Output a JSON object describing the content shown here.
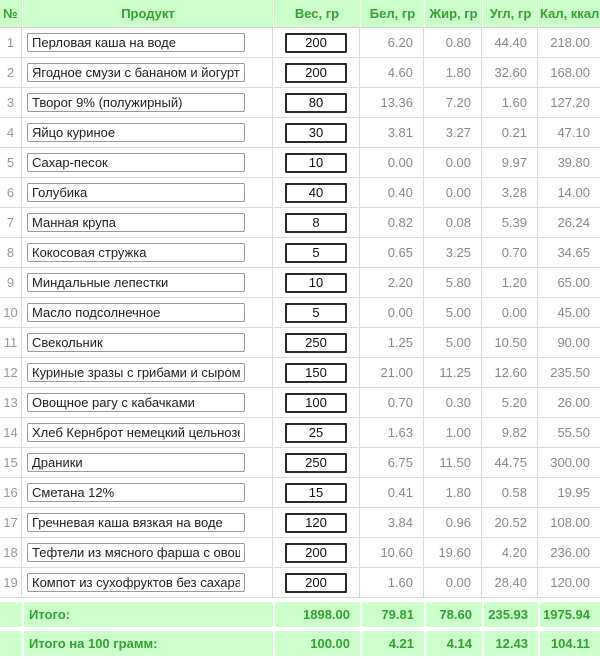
{
  "table": {
    "columns": [
      {
        "key": "num",
        "label": "№"
      },
      {
        "key": "product",
        "label": "Продукт"
      },
      {
        "key": "weight",
        "label": "Вес, гр"
      },
      {
        "key": "protein",
        "label": "Бел, гр"
      },
      {
        "key": "fat",
        "label": "Жир, гр"
      },
      {
        "key": "carbs",
        "label": "Угл, гр"
      },
      {
        "key": "calories",
        "label": "Кал, ккал"
      }
    ],
    "rows": [
      {
        "num": "1",
        "product": "Перловая каша на воде",
        "weight": "200",
        "protein": "6.20",
        "fat": "0.80",
        "carbs": "44.40",
        "calories": "218.00"
      },
      {
        "num": "2",
        "product": "Ягодное смузи с бананом и йогуртом",
        "weight": "200",
        "protein": "4.60",
        "fat": "1.80",
        "carbs": "32.60",
        "calories": "168.00"
      },
      {
        "num": "3",
        "product": "Творог 9% (полужирный)",
        "weight": "80",
        "protein": "13.36",
        "fat": "7.20",
        "carbs": "1.60",
        "calories": "127.20"
      },
      {
        "num": "4",
        "product": "Яйцо куриное",
        "weight": "30",
        "protein": "3.81",
        "fat": "3.27",
        "carbs": "0.21",
        "calories": "47.10"
      },
      {
        "num": "5",
        "product": "Сахар-песок",
        "weight": "10",
        "protein": "0.00",
        "fat": "0.00",
        "carbs": "9.97",
        "calories": "39.80"
      },
      {
        "num": "6",
        "product": "Голубика",
        "weight": "40",
        "protein": "0.40",
        "fat": "0.00",
        "carbs": "3.28",
        "calories": "14.00"
      },
      {
        "num": "7",
        "product": "Манная крупа",
        "weight": "8",
        "protein": "0.82",
        "fat": "0.08",
        "carbs": "5.39",
        "calories": "26.24"
      },
      {
        "num": "8",
        "product": "Кокосовая стружка",
        "weight": "5",
        "protein": "0.65",
        "fat": "3.25",
        "carbs": "0.70",
        "calories": "34.65"
      },
      {
        "num": "9",
        "product": "Миндальные лепестки",
        "weight": "10",
        "protein": "2.20",
        "fat": "5.80",
        "carbs": "1.20",
        "calories": "65.00"
      },
      {
        "num": "10",
        "product": "Масло подсолнечное",
        "weight": "5",
        "protein": "0.00",
        "fat": "5.00",
        "carbs": "0.00",
        "calories": "45.00"
      },
      {
        "num": "11",
        "product": "Свекольник",
        "weight": "250",
        "protein": "1.25",
        "fat": "5.00",
        "carbs": "10.50",
        "calories": "90.00"
      },
      {
        "num": "12",
        "product": "Куриные зразы с грибами и сыром Троекуро",
        "weight": "150",
        "protein": "21.00",
        "fat": "11.25",
        "carbs": "12.60",
        "calories": "235.50"
      },
      {
        "num": "13",
        "product": "Овощное рагу с кабачками",
        "weight": "100",
        "protein": "0.70",
        "fat": "0.30",
        "carbs": "5.20",
        "calories": "26.00"
      },
      {
        "num": "14",
        "product": "Хлеб Кернброт немецкий цельнозерновой",
        "weight": "25",
        "protein": "1.63",
        "fat": "1.00",
        "carbs": "9.82",
        "calories": "55.50"
      },
      {
        "num": "15",
        "product": "Драники",
        "weight": "250",
        "protein": "6.75",
        "fat": "11.50",
        "carbs": "44.75",
        "calories": "300.00"
      },
      {
        "num": "16",
        "product": "Сметана 12%",
        "weight": "15",
        "protein": "0.41",
        "fat": "1.80",
        "carbs": "0.58",
        "calories": "19.95"
      },
      {
        "num": "17",
        "product": "Гречневая каша вязкая на воде",
        "weight": "120",
        "protein": "3.84",
        "fat": "0.96",
        "carbs": "20.52",
        "calories": "108.00"
      },
      {
        "num": "18",
        "product": "Тефтели из мясного фарша с овощами",
        "weight": "200",
        "protein": "10.60",
        "fat": "19.60",
        "carbs": "4.20",
        "calories": "236.00"
      },
      {
        "num": "19",
        "product": "Компот из сухофруктов без сахара",
        "weight": "200",
        "protein": "1.60",
        "fat": "0.00",
        "carbs": "28.40",
        "calories": "120.00"
      }
    ],
    "totals": {
      "label": "Итого:",
      "weight": "1898.00",
      "protein": "79.81",
      "fat": "78.60",
      "carbs": "235.93",
      "calories": "1975.94"
    },
    "totals_per_100": {
      "label": "Итого на 100 грамм:",
      "weight": "100.00",
      "protein": "4.21",
      "fat": "4.14",
      "carbs": "12.43",
      "calories": "104.11"
    }
  },
  "colors": {
    "header_bg": "#ccffcc",
    "accent_green": "#33a333",
    "value_gray": "#8a8a8a",
    "border_gray": "#dadada"
  }
}
